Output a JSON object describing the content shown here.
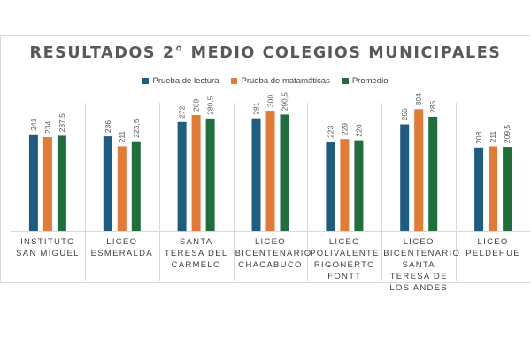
{
  "chart_data": {
    "type": "bar",
    "title": "RESULTADOS 2° MEDIO COLEGIOS MUNICIPALES",
    "categories": [
      "INSTITUTO SAN MIGUEL",
      "LICEO ESMERALDA",
      "SANTA TERESA DEL CARMELO",
      "LICEO BICENTENARIO CHACABUCO",
      "LICEO POLIVALENTE RIGONERTO FONTT",
      "LICEO BICENTENARIO SANTA TERESA DE LOS ANDES",
      "LICEO PELDEHUE"
    ],
    "series": [
      {
        "name": "Prueba de lectura",
        "color": "#1f5c7f",
        "values": [
          241,
          236,
          272,
          281,
          223,
          266,
          208
        ],
        "labels": [
          "241",
          "236",
          "272",
          "281",
          "223",
          "266",
          "208"
        ]
      },
      {
        "name": "Prueba de matamáticas",
        "color": "#e07b39",
        "values": [
          234,
          211,
          289,
          300,
          229,
          304,
          211
        ],
        "labels": [
          "234",
          "211",
          "289",
          "300",
          "229",
          "304",
          "211"
        ]
      },
      {
        "name": "Promedio",
        "color": "#1f6e3b",
        "values": [
          237.5,
          223.5,
          280.5,
          290.5,
          226,
          285,
          209.5
        ],
        "labels": [
          "237,5",
          "223,5",
          "280,5",
          "290,5",
          "226",
          "285",
          "209,5"
        ]
      }
    ],
    "ylim": [
      0,
      320
    ],
    "grid": false,
    "legend_position": "top"
  }
}
